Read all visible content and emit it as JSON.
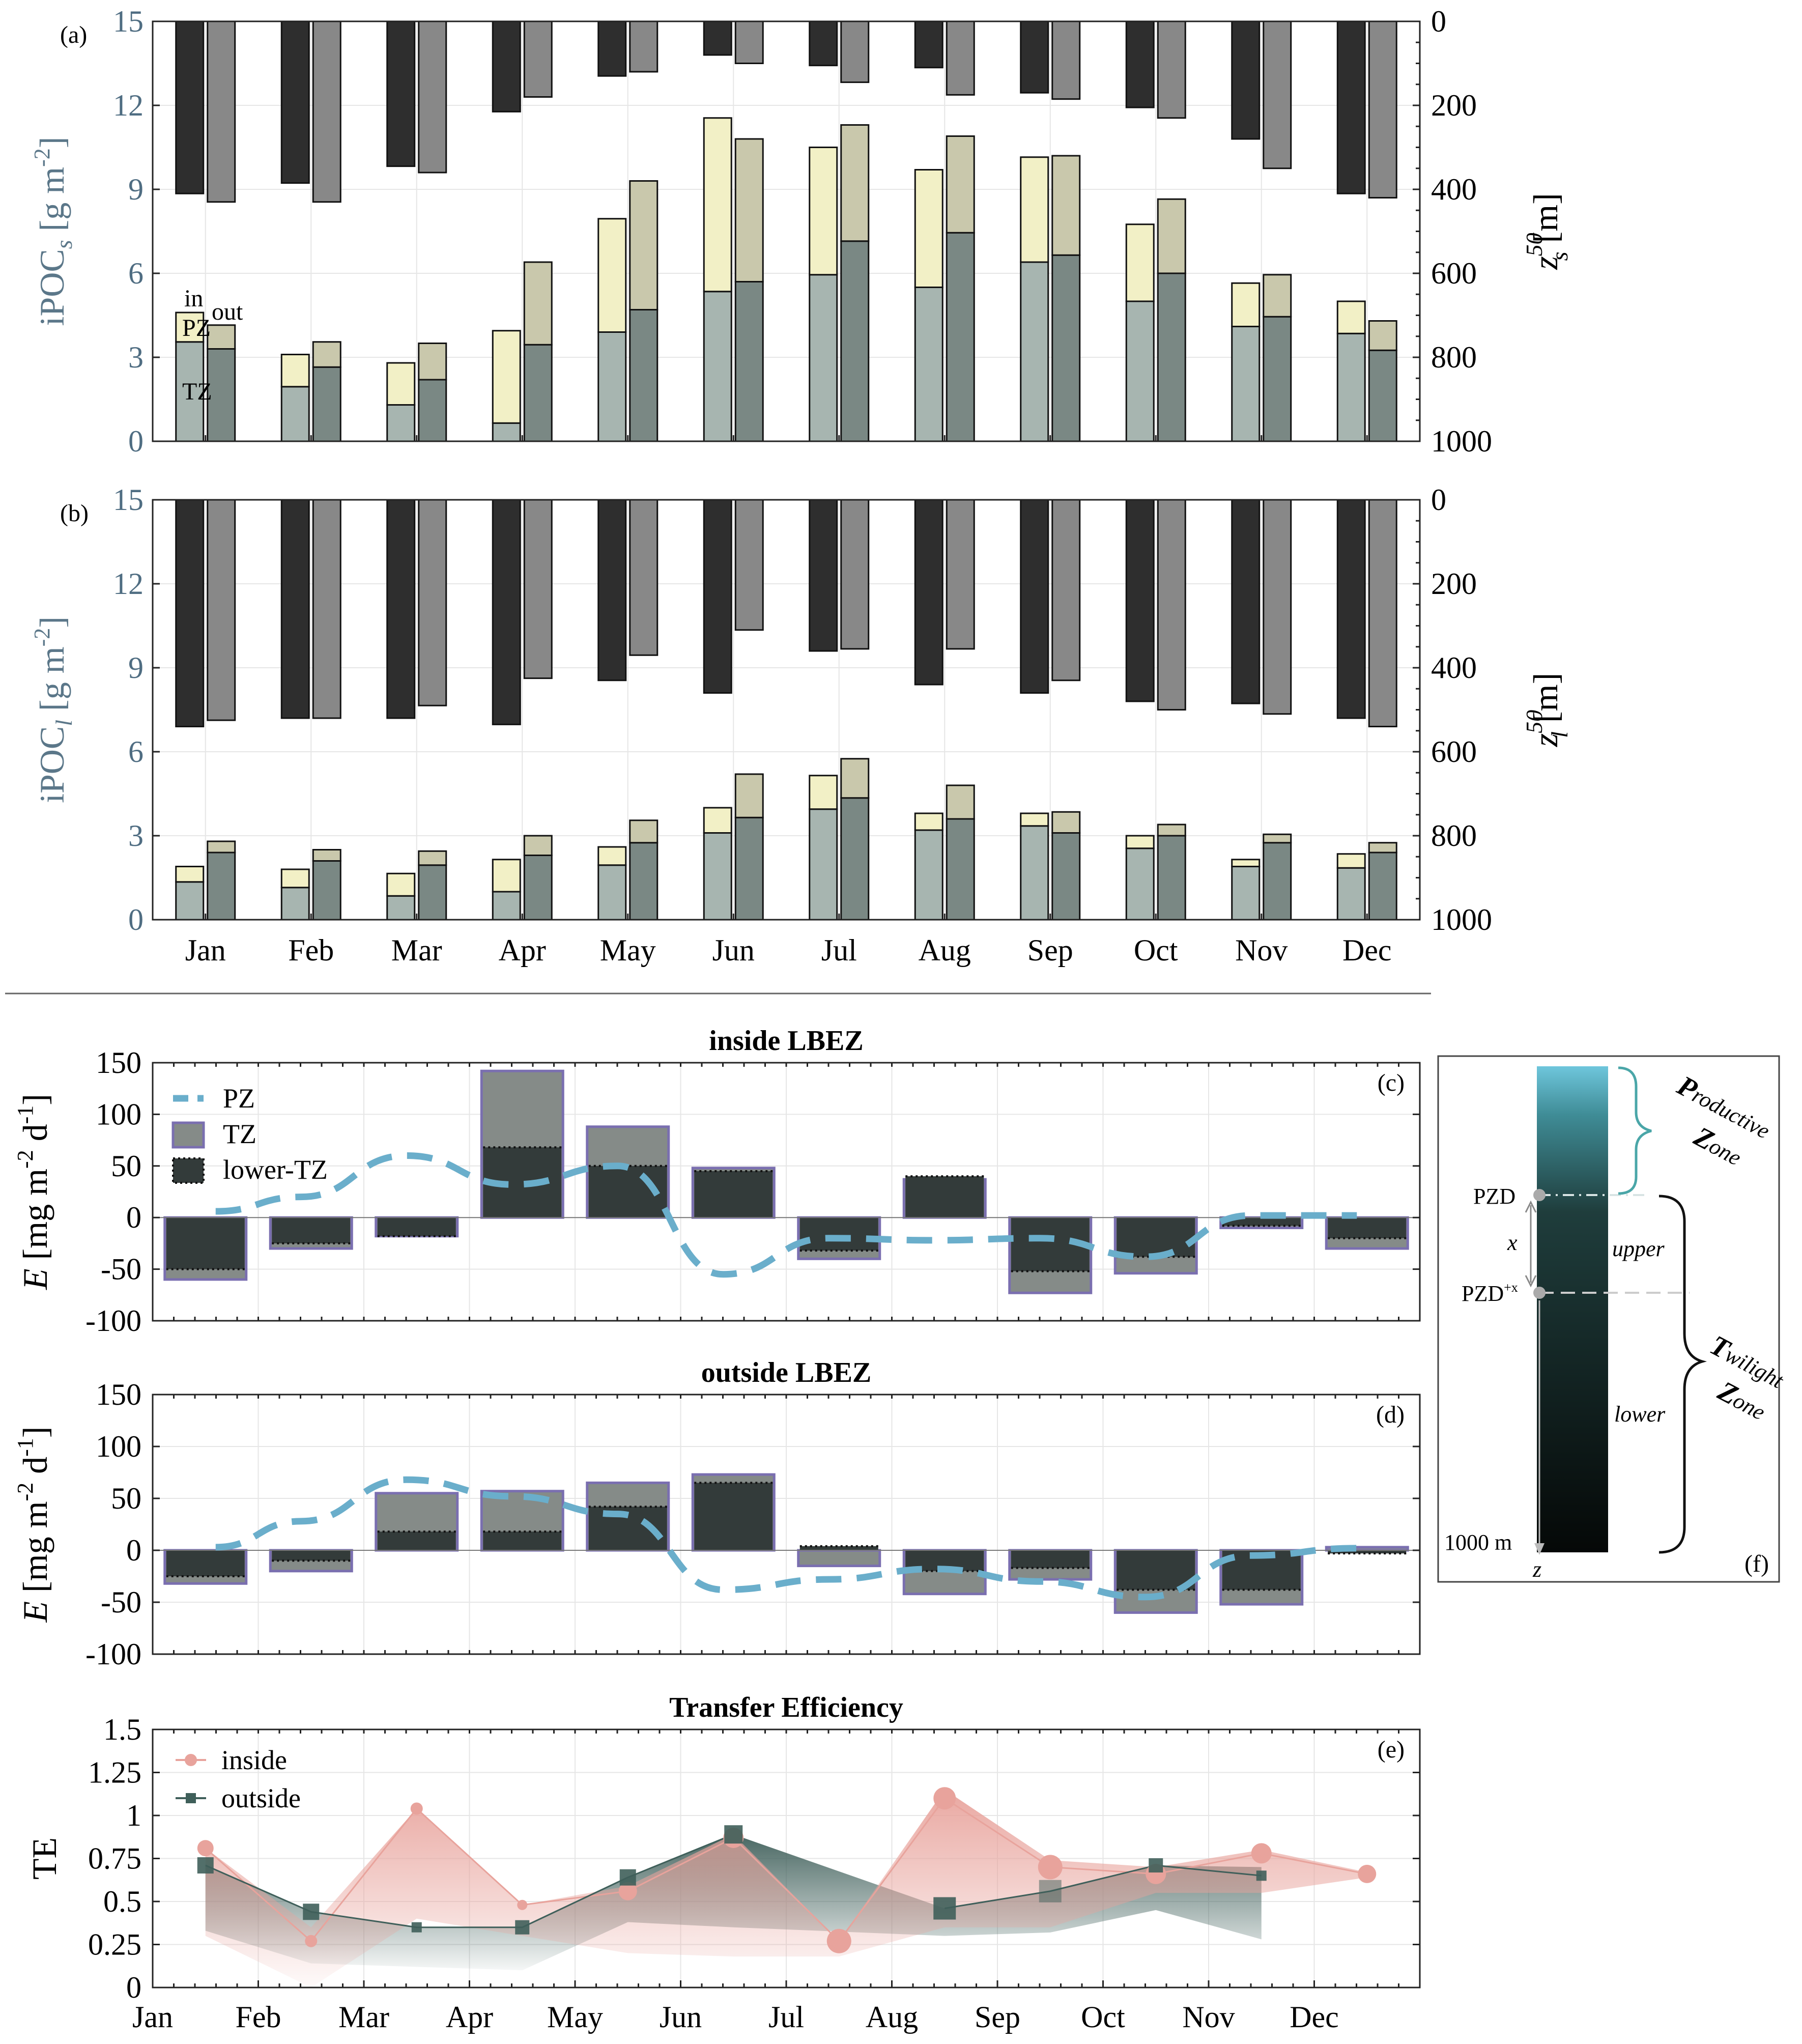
{
  "months": [
    "Jan",
    "Feb",
    "Mar",
    "Apr",
    "May",
    "Jun",
    "Jul",
    "Aug",
    "Sep",
    "Oct",
    "Nov",
    "Dec"
  ],
  "colors": {
    "tz_in": "#a7b5b0",
    "pz_in": "#f2f0c6",
    "tz_out": "#7a8884",
    "pz_out": "#c9c8ac",
    "depth_in": "#2e2e2e",
    "depth_out": "#888888",
    "e_tz": "#858b88",
    "e_lower": "#333b3a",
    "e_edge": "#7a6fb0",
    "e_pz": "#6aaecb",
    "te_in": "#e8a39c",
    "te_out": "#3f5f5a"
  },
  "chart_data": [
    {
      "id": "a",
      "panel_label": "(a)",
      "type": "bar",
      "ylabel": "iPOC",
      "ylabel_sub": "s",
      "ylabel_unit": " [g m",
      "ylabel_exp": "-2",
      "ylabel_close": "]",
      "y2label": "z",
      "y2label_sup": "50",
      "y2label_sub": "s",
      "y2label_unit": " [m]",
      "ylim": [
        0,
        15
      ],
      "yticks": [
        "0",
        "3",
        "6",
        "9",
        "12",
        "15"
      ],
      "y2lim": [
        1000,
        0
      ],
      "y2ticks": [
        "0",
        "200",
        "400",
        "600",
        "800",
        "1000"
      ],
      "categories": [
        "Jan",
        "Feb",
        "Mar",
        "Apr",
        "May",
        "Jun",
        "Jul",
        "Aug",
        "Sep",
        "Oct",
        "Nov",
        "Dec"
      ],
      "series": [
        {
          "name": "TZ",
          "group": "in",
          "values": [
            3.55,
            1.95,
            1.3,
            0.65,
            3.9,
            5.35,
            5.95,
            5.5,
            6.4,
            5.0,
            4.1,
            3.85
          ]
        },
        {
          "name": "PZ",
          "group": "in",
          "values": [
            1.05,
            1.15,
            1.5,
            3.3,
            4.05,
            6.2,
            4.55,
            4.2,
            3.75,
            2.75,
            1.55,
            1.15
          ]
        },
        {
          "name": "TZ",
          "group": "out",
          "values": [
            3.3,
            2.65,
            2.2,
            3.45,
            4.7,
            5.7,
            7.15,
            7.45,
            6.65,
            6.0,
            4.45,
            3.25
          ]
        },
        {
          "name": "PZ",
          "group": "out",
          "values": [
            0.85,
            0.9,
            1.3,
            2.95,
            4.6,
            5.1,
            4.15,
            3.45,
            3.55,
            2.65,
            1.5,
            1.05
          ]
        }
      ],
      "depth_in": [
        410,
        385,
        345,
        215,
        130,
        80,
        105,
        110,
        170,
        205,
        280,
        410
      ],
      "depth_out": [
        430,
        430,
        360,
        180,
        120,
        100,
        145,
        175,
        185,
        230,
        350,
        420
      ],
      "annot": {
        "in": "in",
        "out": "out",
        "pz": "PZ",
        "tz": "TZ"
      }
    },
    {
      "id": "b",
      "panel_label": "(b)",
      "type": "bar",
      "ylabel": "iPOC",
      "ylabel_sub": "l",
      "ylabel_unit": " [g m",
      "ylabel_exp": "-2",
      "ylabel_close": "]",
      "y2label": "z",
      "y2label_sup": "50",
      "y2label_sub": "l",
      "y2label_unit": " [m]",
      "ylim": [
        0,
        15
      ],
      "yticks": [
        "0",
        "3",
        "6",
        "9",
        "12",
        "15"
      ],
      "y2lim": [
        1000,
        0
      ],
      "y2ticks": [
        "0",
        "200",
        "400",
        "600",
        "800",
        "1000"
      ],
      "categories": [
        "Jan",
        "Feb",
        "Mar",
        "Apr",
        "May",
        "Jun",
        "Jul",
        "Aug",
        "Sep",
        "Oct",
        "Nov",
        "Dec"
      ],
      "series": [
        {
          "name": "TZ",
          "group": "in",
          "values": [
            1.35,
            1.15,
            0.85,
            1.0,
            1.95,
            3.1,
            3.95,
            3.2,
            3.35,
            2.55,
            1.9,
            1.85
          ]
        },
        {
          "name": "PZ",
          "group": "in",
          "values": [
            0.55,
            0.65,
            0.8,
            1.15,
            0.65,
            0.9,
            1.2,
            0.6,
            0.45,
            0.45,
            0.25,
            0.5
          ]
        },
        {
          "name": "TZ",
          "group": "out",
          "values": [
            2.4,
            2.1,
            1.95,
            2.3,
            2.75,
            3.65,
            4.35,
            3.6,
            3.1,
            3.0,
            2.75,
            2.4
          ]
        },
        {
          "name": "PZ",
          "group": "out",
          "values": [
            0.4,
            0.4,
            0.5,
            0.7,
            0.8,
            1.55,
            1.4,
            1.2,
            0.75,
            0.4,
            0.3,
            0.35
          ]
        }
      ],
      "depth_in": [
        540,
        520,
        520,
        535,
        430,
        460,
        360,
        440,
        460,
        480,
        485,
        520
      ],
      "depth_out": [
        525,
        520,
        490,
        425,
        370,
        310,
        355,
        355,
        430,
        500,
        510,
        540
      ],
      "xticks": [
        "Jan",
        "Feb",
        "Mar",
        "Apr",
        "May",
        "Jun",
        "Jul",
        "Aug",
        "Sep",
        "Oct",
        "Nov",
        "Dec"
      ]
    },
    {
      "id": "c",
      "panel_label": "(c)",
      "type": "bar",
      "title": "inside LBEZ",
      "ylabel_italic": "E",
      "ylabel_unit": " [mg m",
      "ylabel_exp1": "-2",
      "ylabel_mid": " d",
      "ylabel_exp2": "-1",
      "ylabel_close": "]",
      "ylim": [
        -100,
        150
      ],
      "yticks": [
        "-100",
        "-50",
        "0",
        "50",
        "100",
        "150"
      ],
      "legend": [
        "PZ",
        "TZ",
        "lower-TZ"
      ],
      "tz": [
        -60,
        -30,
        -18,
        142,
        88,
        48,
        -40,
        37,
        -73,
        -54,
        -10,
        -30
      ],
      "lower_tz": [
        -50,
        -25,
        -18,
        68,
        50,
        45,
        -32,
        40,
        -52,
        -38,
        -8,
        -20
      ],
      "pz_x": [
        1,
        2,
        3,
        4,
        5,
        6,
        7,
        8,
        9,
        10,
        11,
        12
      ],
      "pz": [
        6,
        20,
        60,
        32,
        50,
        -55,
        -20,
        -22,
        -20,
        -38,
        2,
        2
      ]
    },
    {
      "id": "d",
      "panel_label": "(d)",
      "type": "bar",
      "title": "outside LBEZ",
      "ylabel_italic": "E",
      "ylabel_unit": " [mg m",
      "ylabel_exp1": "-2",
      "ylabel_mid": " d",
      "ylabel_exp2": "-1",
      "ylabel_close": "]",
      "ylim": [
        -100,
        150
      ],
      "yticks": [
        "-100",
        "-50",
        "0",
        "50",
        "100",
        "150"
      ],
      "tz": [
        -32,
        -20,
        55,
        57,
        65,
        73,
        -15,
        -42,
        -28,
        -60,
        -52,
        3
      ],
      "lower_tz": [
        -25,
        -10,
        18,
        18,
        42,
        65,
        4,
        -20,
        -17,
        -38,
        -38,
        -3
      ],
      "pz_x": [
        1,
        2,
        3,
        4,
        5,
        6,
        7,
        8,
        9,
        10,
        11,
        12
      ],
      "pz": [
        3,
        28,
        68,
        52,
        35,
        -38,
        -28,
        -18,
        -30,
        -45,
        -5,
        2
      ]
    },
    {
      "id": "e",
      "panel_label": "(e)",
      "type": "line",
      "title": "Transfer Efficiency",
      "ylabel": "TE",
      "ylim": [
        0,
        1.5
      ],
      "yticks": [
        "0",
        "0.25",
        "0.5",
        "0.75",
        "1",
        "1.25",
        "1.5"
      ],
      "xticks": [
        "Jan",
        "Feb",
        "Mar",
        "Apr",
        "May",
        "Jun",
        "Jul",
        "Aug",
        "Sep",
        "Oct",
        "Nov",
        "Dec"
      ],
      "legend": [
        "inside",
        "outside"
      ],
      "series": [
        {
          "name": "inside",
          "x": [
            1.5,
            2.5,
            3.5,
            4.5,
            5.5,
            6.5,
            7.5,
            8.5,
            9.5,
            10.5,
            11.5,
            12.5
          ],
          "values": [
            0.81,
            0.27,
            1.04,
            0.48,
            0.56,
            0.87,
            0.27,
            1.1,
            0.7,
            0.66,
            0.78,
            0.66
          ],
          "low": [
            0.3,
            0.0,
            0.4,
            0.3,
            0.2,
            0.18,
            0.18,
            0.35,
            0.35,
            0.55,
            0.55,
            0.64
          ],
          "high": [
            0.81,
            0.35,
            1.04,
            0.48,
            0.59,
            0.89,
            0.27,
            1.15,
            0.74,
            0.7,
            0.8,
            0.67
          ]
        },
        {
          "name": "outside",
          "x": [
            1.5,
            2.5,
            3.5,
            4.5,
            5.5,
            6.5,
            8.5,
            9.5,
            10.5,
            11.5
          ],
          "values": [
            0.71,
            0.44,
            0.35,
            0.35,
            0.64,
            0.89,
            0.46,
            0.56,
            0.71,
            0.65
          ],
          "low": [
            0.33,
            0.14,
            0.12,
            0.1,
            0.38,
            0.35,
            0.3,
            0.32,
            0.45,
            0.28
          ],
          "high": [
            0.71,
            0.44,
            0.35,
            0.35,
            0.64,
            0.89,
            0.46,
            0.56,
            0.71,
            0.7
          ]
        }
      ]
    }
  ],
  "schematic": {
    "panel_label": "(f)",
    "pzd": "PZD",
    "pzd_x": "PZD",
    "pzd_x_sup": "+x",
    "x": "x",
    "upper": "upper",
    "lower": "lower",
    "depth": "1000 m",
    "z": "z",
    "productive_1": "P",
    "productive_2": "roductive",
    "productive_3": "Z",
    "productive_4": "one",
    "twilight_1": "T",
    "twilight_2": "wilight",
    "twilight_3": "Z",
    "twilight_4": "one"
  }
}
